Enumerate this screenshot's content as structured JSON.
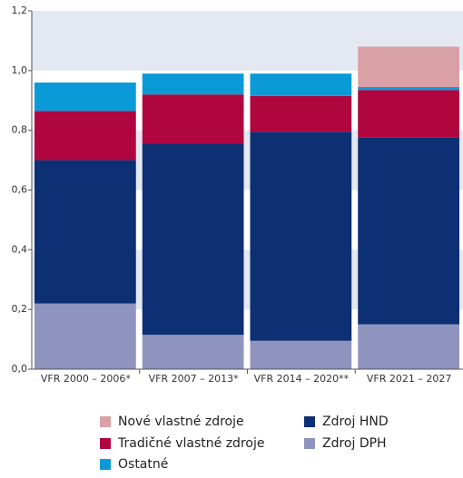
{
  "chart_data": {
    "type": "stacked_bar",
    "categories": [
      "VFR 2000 – 2006*",
      "VFR 2007 – 2013*",
      "VFR 2014 – 2020**",
      "VFR 2021 – 2027"
    ],
    "series": [
      {
        "name": "Zdroj DPH",
        "color": "#8f94bf",
        "values": [
          0.22,
          0.115,
          0.095,
          0.15
        ]
      },
      {
        "name": "Zdroj HND",
        "color": "#0d2f73",
        "values": [
          0.48,
          0.64,
          0.7,
          0.625
        ]
      },
      {
        "name": "Tradičné vlastné zdroje",
        "color": "#b0063f",
        "values": [
          0.165,
          0.165,
          0.12,
          0.16
        ]
      },
      {
        "name": "Ostatné",
        "color": "#0b9ad8",
        "values": [
          0.095,
          0.07,
          0.075,
          0.01
        ]
      },
      {
        "name": "Nové vlastné zdroje",
        "color": "#d9a0a6",
        "values": [
          0,
          0,
          0,
          0.135
        ]
      }
    ],
    "ylim": [
      0,
      1.2
    ],
    "yticks": [
      {
        "value": 0,
        "label": "0,0"
      },
      {
        "value": 0.2,
        "label": "0,2"
      },
      {
        "value": 0.4,
        "label": "0,4"
      },
      {
        "value": 0.6,
        "label": "0,6"
      },
      {
        "value": 0.8,
        "label": "0,8"
      },
      {
        "value": 1.0,
        "label": "1,0"
      },
      {
        "value": 1.2,
        "label": "1,2"
      }
    ],
    "grid": true
  }
}
